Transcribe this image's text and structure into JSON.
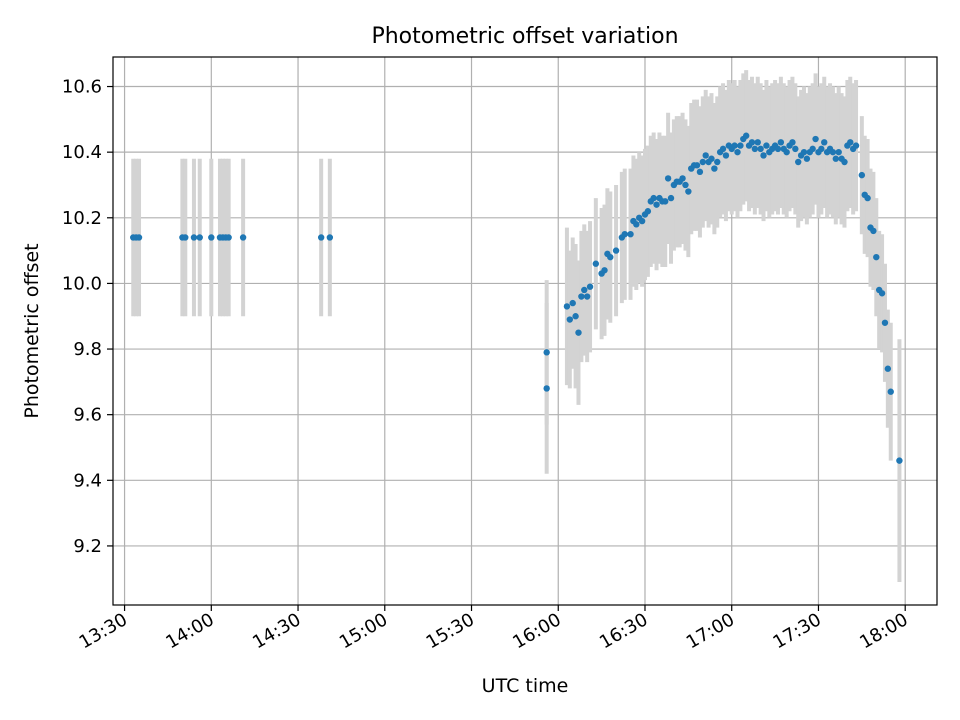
{
  "chart_data": {
    "type": "scatter",
    "title": "Photometric offset variation",
    "xlabel": "UTC time",
    "ylabel": "Photometric offset",
    "x_is_time": true,
    "xlim": [
      "13:26",
      "18:11"
    ],
    "ylim": [
      9.02,
      10.69
    ],
    "xticks": [
      "13:30",
      "14:00",
      "14:30",
      "15:00",
      "15:30",
      "16:00",
      "16:30",
      "17:00",
      "17:30",
      "18:00"
    ],
    "yticks": [
      "9.2",
      "9.4",
      "9.6",
      "9.8",
      "10.0",
      "10.2",
      "10.4",
      "10.6"
    ],
    "grid": true,
    "marker_color": "#1f77b4",
    "errorbar_color": "#d3d3d3",
    "points": [
      {
        "t": "13:33",
        "y": 10.14,
        "err": 0.24
      },
      {
        "t": "13:34",
        "y": 10.14,
        "err": 0.24
      },
      {
        "t": "13:35",
        "y": 10.14,
        "err": 0.24
      },
      {
        "t": "13:50",
        "y": 10.14,
        "err": 0.24
      },
      {
        "t": "13:51",
        "y": 10.14,
        "err": 0.24
      },
      {
        "t": "13:54",
        "y": 10.14,
        "err": 0.24
      },
      {
        "t": "13:56",
        "y": 10.14,
        "err": 0.24
      },
      {
        "t": "14:00",
        "y": 10.14,
        "err": 0.24
      },
      {
        "t": "14:03",
        "y": 10.14,
        "err": 0.24
      },
      {
        "t": "14:04",
        "y": 10.14,
        "err": 0.24
      },
      {
        "t": "14:05",
        "y": 10.14,
        "err": 0.24
      },
      {
        "t": "14:06",
        "y": 10.14,
        "err": 0.24
      },
      {
        "t": "14:11",
        "y": 10.14,
        "err": 0.24
      },
      {
        "t": "14:38",
        "y": 10.14,
        "err": 0.24
      },
      {
        "t": "14:41",
        "y": 10.14,
        "err": 0.24
      },
      {
        "t": "15:56",
        "y": 9.79,
        "err": 0.22
      },
      {
        "t": "15:56",
        "y": 9.68,
        "err": 0.26
      },
      {
        "t": "16:03",
        "y": 9.93,
        "err": 0.24
      },
      {
        "t": "16:04",
        "y": 9.89,
        "err": 0.21
      },
      {
        "t": "16:05",
        "y": 9.94,
        "err": 0.2
      },
      {
        "t": "16:06",
        "y": 9.9,
        "err": 0.22
      },
      {
        "t": "16:07",
        "y": 9.85,
        "err": 0.22
      },
      {
        "t": "16:08",
        "y": 9.96,
        "err": 0.2
      },
      {
        "t": "16:09",
        "y": 9.98,
        "err": 0.2
      },
      {
        "t": "16:10",
        "y": 9.96,
        "err": 0.2
      },
      {
        "t": "16:11",
        "y": 9.99,
        "err": 0.2
      },
      {
        "t": "16:13",
        "y": 10.06,
        "err": 0.2
      },
      {
        "t": "16:15",
        "y": 10.03,
        "err": 0.2
      },
      {
        "t": "16:16",
        "y": 10.04,
        "err": 0.2
      },
      {
        "t": "16:17",
        "y": 10.09,
        "err": 0.2
      },
      {
        "t": "16:18",
        "y": 10.08,
        "err": 0.2
      },
      {
        "t": "16:20",
        "y": 10.1,
        "err": 0.2
      },
      {
        "t": "16:22",
        "y": 10.14,
        "err": 0.2
      },
      {
        "t": "16:23",
        "y": 10.15,
        "err": 0.2
      },
      {
        "t": "16:25",
        "y": 10.15,
        "err": 0.2
      },
      {
        "t": "16:26",
        "y": 10.19,
        "err": 0.2
      },
      {
        "t": "16:27",
        "y": 10.18,
        "err": 0.2
      },
      {
        "t": "16:28",
        "y": 10.2,
        "err": 0.2
      },
      {
        "t": "16:29",
        "y": 10.19,
        "err": 0.2
      },
      {
        "t": "16:30",
        "y": 10.21,
        "err": 0.2
      },
      {
        "t": "16:31",
        "y": 10.22,
        "err": 0.2
      },
      {
        "t": "16:32",
        "y": 10.25,
        "err": 0.2
      },
      {
        "t": "16:33",
        "y": 10.26,
        "err": 0.2
      },
      {
        "t": "16:34",
        "y": 10.24,
        "err": 0.2
      },
      {
        "t": "16:35",
        "y": 10.26,
        "err": 0.2
      },
      {
        "t": "16:36",
        "y": 10.25,
        "err": 0.2
      },
      {
        "t": "16:37",
        "y": 10.25,
        "err": 0.2
      },
      {
        "t": "16:38",
        "y": 10.32,
        "err": 0.2
      },
      {
        "t": "16:39",
        "y": 10.26,
        "err": 0.2
      },
      {
        "t": "16:40",
        "y": 10.3,
        "err": 0.2
      },
      {
        "t": "16:41",
        "y": 10.31,
        "err": 0.2
      },
      {
        "t": "16:42",
        "y": 10.31,
        "err": 0.2
      },
      {
        "t": "16:43",
        "y": 10.32,
        "err": 0.2
      },
      {
        "t": "16:44",
        "y": 10.3,
        "err": 0.2
      },
      {
        "t": "16:45",
        "y": 10.28,
        "err": 0.2
      },
      {
        "t": "16:46",
        "y": 10.35,
        "err": 0.2
      },
      {
        "t": "16:47",
        "y": 10.36,
        "err": 0.2
      },
      {
        "t": "16:48",
        "y": 10.36,
        "err": 0.2
      },
      {
        "t": "16:49",
        "y": 10.34,
        "err": 0.2
      },
      {
        "t": "16:50",
        "y": 10.37,
        "err": 0.2
      },
      {
        "t": "16:51",
        "y": 10.39,
        "err": 0.2
      },
      {
        "t": "16:52",
        "y": 10.37,
        "err": 0.2
      },
      {
        "t": "16:53",
        "y": 10.38,
        "err": 0.2
      },
      {
        "t": "16:54",
        "y": 10.35,
        "err": 0.2
      },
      {
        "t": "16:55",
        "y": 10.37,
        "err": 0.2
      },
      {
        "t": "16:56",
        "y": 10.4,
        "err": 0.2
      },
      {
        "t": "16:57",
        "y": 10.41,
        "err": 0.2
      },
      {
        "t": "16:58",
        "y": 10.39,
        "err": 0.2
      },
      {
        "t": "16:59",
        "y": 10.42,
        "err": 0.2
      },
      {
        "t": "17:00",
        "y": 10.41,
        "err": 0.2
      },
      {
        "t": "17:01",
        "y": 10.42,
        "err": 0.2
      },
      {
        "t": "17:02",
        "y": 10.4,
        "err": 0.2
      },
      {
        "t": "17:03",
        "y": 10.42,
        "err": 0.2
      },
      {
        "t": "17:04",
        "y": 10.44,
        "err": 0.2
      },
      {
        "t": "17:05",
        "y": 10.45,
        "err": 0.2
      },
      {
        "t": "17:06",
        "y": 10.42,
        "err": 0.2
      },
      {
        "t": "17:07",
        "y": 10.43,
        "err": 0.2
      },
      {
        "t": "17:08",
        "y": 10.41,
        "err": 0.2
      },
      {
        "t": "17:09",
        "y": 10.43,
        "err": 0.2
      },
      {
        "t": "17:10",
        "y": 10.41,
        "err": 0.2
      },
      {
        "t": "17:11",
        "y": 10.39,
        "err": 0.2
      },
      {
        "t": "17:12",
        "y": 10.42,
        "err": 0.2
      },
      {
        "t": "17:13",
        "y": 10.4,
        "err": 0.2
      },
      {
        "t": "17:14",
        "y": 10.41,
        "err": 0.2
      },
      {
        "t": "17:15",
        "y": 10.42,
        "err": 0.2
      },
      {
        "t": "17:16",
        "y": 10.41,
        "err": 0.2
      },
      {
        "t": "17:17",
        "y": 10.43,
        "err": 0.2
      },
      {
        "t": "17:18",
        "y": 10.41,
        "err": 0.2
      },
      {
        "t": "17:19",
        "y": 10.4,
        "err": 0.2
      },
      {
        "t": "17:20",
        "y": 10.42,
        "err": 0.2
      },
      {
        "t": "17:21",
        "y": 10.43,
        "err": 0.2
      },
      {
        "t": "17:22",
        "y": 10.41,
        "err": 0.2
      },
      {
        "t": "17:23",
        "y": 10.37,
        "err": 0.2
      },
      {
        "t": "17:24",
        "y": 10.39,
        "err": 0.2
      },
      {
        "t": "17:25",
        "y": 10.4,
        "err": 0.2
      },
      {
        "t": "17:26",
        "y": 10.38,
        "err": 0.2
      },
      {
        "t": "17:27",
        "y": 10.4,
        "err": 0.2
      },
      {
        "t": "17:28",
        "y": 10.41,
        "err": 0.2
      },
      {
        "t": "17:29",
        "y": 10.44,
        "err": 0.2
      },
      {
        "t": "17:30",
        "y": 10.4,
        "err": 0.2
      },
      {
        "t": "17:31",
        "y": 10.41,
        "err": 0.2
      },
      {
        "t": "17:32",
        "y": 10.43,
        "err": 0.2
      },
      {
        "t": "17:33",
        "y": 10.4,
        "err": 0.2
      },
      {
        "t": "17:34",
        "y": 10.41,
        "err": 0.2
      },
      {
        "t": "17:35",
        "y": 10.4,
        "err": 0.2
      },
      {
        "t": "17:36",
        "y": 10.38,
        "err": 0.2
      },
      {
        "t": "17:37",
        "y": 10.4,
        "err": 0.2
      },
      {
        "t": "17:38",
        "y": 10.38,
        "err": 0.2
      },
      {
        "t": "17:39",
        "y": 10.37,
        "err": 0.2
      },
      {
        "t": "17:40",
        "y": 10.42,
        "err": 0.2
      },
      {
        "t": "17:41",
        "y": 10.43,
        "err": 0.2
      },
      {
        "t": "17:42",
        "y": 10.41,
        "err": 0.2
      },
      {
        "t": "17:43",
        "y": 10.42,
        "err": 0.2
      },
      {
        "t": "17:45",
        "y": 10.33,
        "err": 0.18
      },
      {
        "t": "17:46",
        "y": 10.27,
        "err": 0.18
      },
      {
        "t": "17:47",
        "y": 10.26,
        "err": 0.18
      },
      {
        "t": "17:48",
        "y": 10.17,
        "err": 0.18
      },
      {
        "t": "17:49",
        "y": 10.16,
        "err": 0.18
      },
      {
        "t": "17:50",
        "y": 10.08,
        "err": 0.18
      },
      {
        "t": "17:51",
        "y": 9.98,
        "err": 0.18
      },
      {
        "t": "17:52",
        "y": 9.97,
        "err": 0.18
      },
      {
        "t": "17:53",
        "y": 9.88,
        "err": 0.18
      },
      {
        "t": "17:54",
        "y": 9.74,
        "err": 0.18
      },
      {
        "t": "17:55",
        "y": 9.67,
        "err": 0.21
      },
      {
        "t": "17:58",
        "y": 9.46,
        "err": 0.37
      }
    ]
  }
}
